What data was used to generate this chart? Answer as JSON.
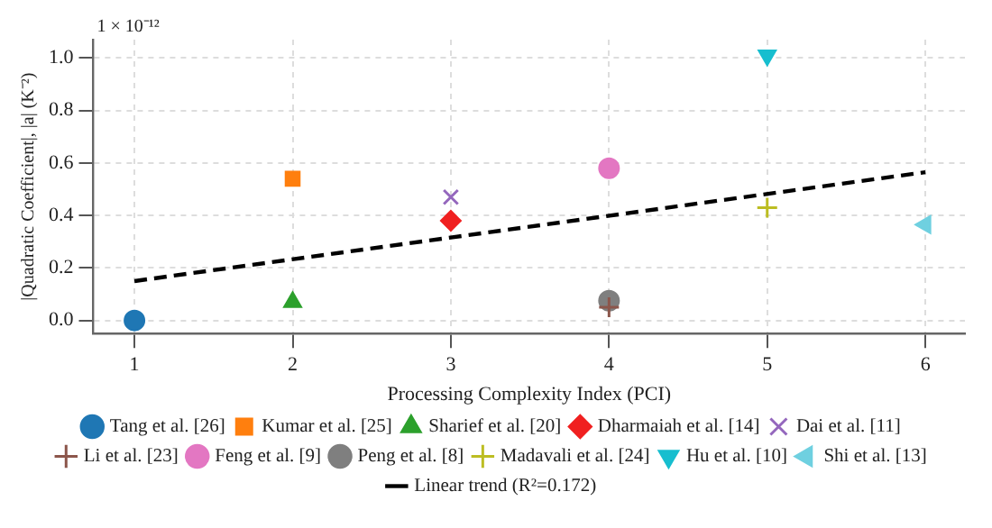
{
  "chart_data": {
    "type": "scatter",
    "xlabel": "Processing Complexity Index (PCI)",
    "ylabel": "|Quadratic Coefficient|, |a| (K⁻²)",
    "annotations": [
      "1 × 10⁻¹²"
    ],
    "xlim": [
      0.74,
      6.25
    ],
    "xticks": [
      1,
      2,
      3,
      4,
      5,
      6
    ],
    "ylim": [
      -0.05,
      1.07
    ],
    "yticks": [
      {
        "value": 0,
        "label": "0.0"
      },
      {
        "value": 0.2,
        "label": "0.2"
      },
      {
        "value": 0.4,
        "label": "0.4"
      },
      {
        "value": 0.6,
        "label": "0.6"
      },
      {
        "value": 0.8,
        "label": "0.8"
      },
      {
        "value": 1,
        "label": "1.0"
      }
    ],
    "grid": true,
    "legend": "bottom",
    "series": [
      {
        "name": "Tang et al. [26]",
        "color": "#1f77b4",
        "marker": "circle",
        "x": [
          1
        ],
        "values": [
          0.0
        ]
      },
      {
        "name": "Kumar et al. [25]",
        "color": "#ff7f0e",
        "marker": "square",
        "x": [
          2
        ],
        "values": [
          0.54
        ]
      },
      {
        "name": "Sharief et al. [20]",
        "color": "#2ca02c",
        "marker": "triangle",
        "x": [
          2
        ],
        "values": [
          0.07
        ]
      },
      {
        "name": "Dharmaiah et al. [14]",
        "color": "#f02020",
        "marker": "diamond",
        "x": [
          3
        ],
        "values": [
          0.38
        ]
      },
      {
        "name": "Dai et al. [11]",
        "color": "#9467bd",
        "marker": "x",
        "x": [
          3
        ],
        "values": [
          0.47
        ]
      },
      {
        "name": "Li et al. [23]",
        "color": "#8c564b",
        "marker": "cross",
        "x": [
          4
        ],
        "values": [
          0.05
        ]
      },
      {
        "name": "Feng et al. [9]",
        "color": "#e377c2",
        "marker": "circle",
        "x": [
          4
        ],
        "values": [
          0.58
        ]
      },
      {
        "name": "Peng et al. [8]",
        "color": "#7f7f7f",
        "marker": "circle",
        "x": [
          4
        ],
        "values": [
          0.075
        ]
      },
      {
        "name": "Madavali et al. [24]",
        "color": "#bcbd22",
        "marker": "cross",
        "x": [
          5
        ],
        "values": [
          0.43
        ]
      },
      {
        "name": "Hu et al. [10]",
        "color": "#17becf",
        "marker": "triangle-down",
        "x": [
          5
        ],
        "values": [
          1.01
        ]
      },
      {
        "name": "Shi et al. [13]",
        "color": "#6fd0e0",
        "marker": "triangle-left",
        "x": [
          6
        ],
        "values": [
          0.365
        ]
      },
      {
        "name": "Linear trend (R²=0.172)",
        "type": "line",
        "color": "#000000",
        "marker": "none",
        "line_style": "dashed",
        "x": [
          1,
          6
        ],
        "values": [
          0.15,
          0.565
        ]
      }
    ]
  }
}
